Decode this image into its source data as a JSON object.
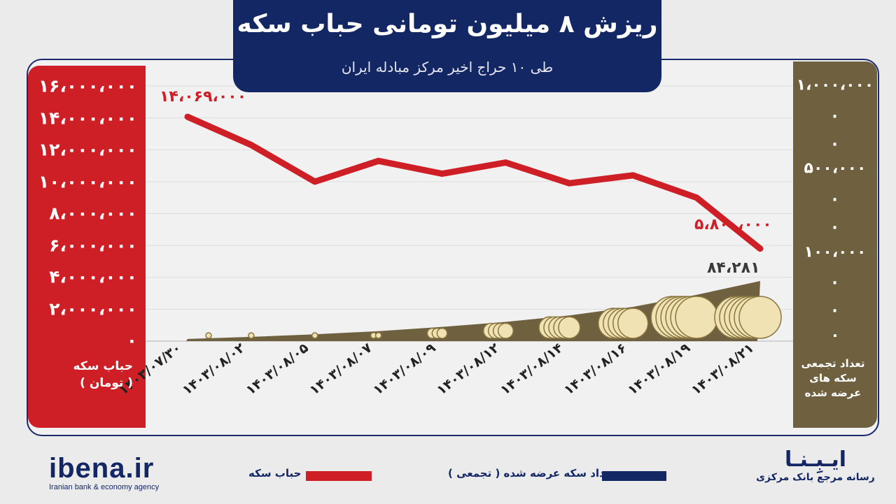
{
  "header": {
    "title": "ریزش ۸ میلیون تومانی حباب سکه",
    "subtitle": "طی ۱۰ حراج اخیر مرکز مبادله ایران"
  },
  "left_axis": {
    "ticks": [
      "۱۶،۰۰۰،۰۰۰",
      "۱۴،۰۰۰،۰۰۰",
      "۱۲،۰۰۰،۰۰۰",
      "۱۰،۰۰۰،۰۰۰",
      "۸،۰۰۰،۰۰۰",
      "۶،۰۰۰،۰۰۰",
      "۴،۰۰۰،۰۰۰",
      "۲،۰۰۰،۰۰۰",
      "۰"
    ],
    "label_line1": "حباب سکه",
    "label_line2": "( تومان )"
  },
  "right_axis": {
    "ticks": [
      "۱،۰۰۰،۰۰۰",
      ".",
      ".",
      "۵۰۰،۰۰۰",
      ".",
      ".",
      "۱۰۰،۰۰۰",
      ".",
      ".",
      "۰"
    ],
    "label_line1": "تعداد تجمعی",
    "label_line2": "سکه های",
    "label_line3": "عرضه شده"
  },
  "chart_data": {
    "type": "line",
    "categories": [
      "۱۴۰۳/۰۷/۳۰",
      "۱۴۰۳/۰۸/۰۲",
      "۱۴۰۳/۰۸/۰۵",
      "۱۴۰۳/۰۸/۰۷",
      "۱۴۰۳/۰۸/۰۹",
      "۱۴۰۳/۰۸/۱۲",
      "۱۴۰۳/۰۸/۱۴",
      "۱۴۰۳/۰۸/۱۶",
      "۱۴۰۳/۰۸/۱۹",
      "۱۴۰۳/۰۸/۲۱"
    ],
    "series": [
      {
        "name": "حباب سکه",
        "axis": "left",
        "type": "line",
        "color": "#cf1f26",
        "values": [
          14069000,
          12300000,
          10000000,
          11300000,
          10500000,
          11200000,
          9900000,
          10400000,
          9000000,
          5800000
        ]
      },
      {
        "name": "تعداد سکه عرضه شده ( تجمعی )",
        "axis": "right",
        "type": "area",
        "color": "#6f6040",
        "values": [
          3000,
          6000,
          9500,
          14000,
          20000,
          27000,
          36000,
          48000,
          65000,
          84281
        ]
      }
    ],
    "left_ylim": [
      0,
      16000000
    ],
    "right_ylim": [
      0,
      100000
    ],
    "data_labels": {
      "first_bubble": "۱۴،۰۶۹،۰۰۰",
      "last_bubble": "۵،۸۰۰،۰۰۰",
      "last_count": "۸۴،۲۸۱"
    },
    "grid": true,
    "legend": "bottom"
  },
  "legend": {
    "bubble_label": "حباب سکه",
    "bubble_color": "#cf1f26",
    "count_label": "تعداد سکه عرضه شده ( تجمعی )",
    "count_color": "#142765"
  },
  "footer": {
    "left_brand": "ibena.ir",
    "left_tagline": "Iranian bank & economy agency",
    "right_brand": "ایـبِـنـا",
    "right_tagline": "رسانه مرجع بانک مرکزی"
  }
}
